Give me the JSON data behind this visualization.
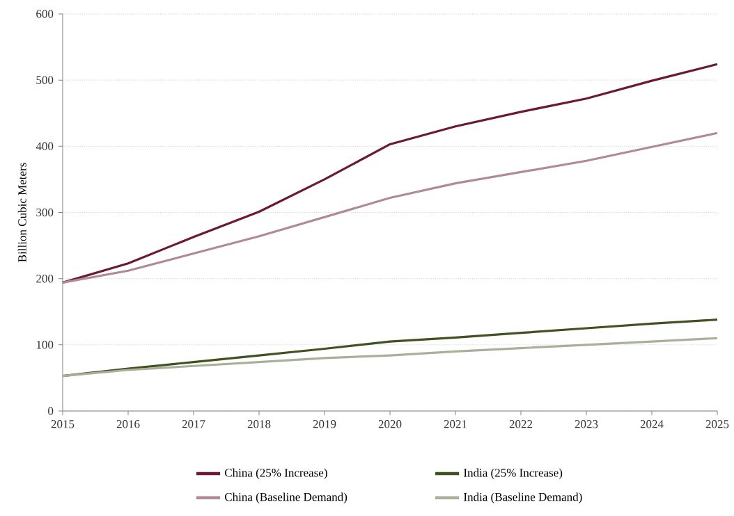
{
  "chart_data": {
    "type": "line",
    "ylabel": "Billion Cubic Meters",
    "x": [
      2015,
      2016,
      2017,
      2018,
      2019,
      2020,
      2021,
      2022,
      2023,
      2024,
      2025
    ],
    "series": [
      {
        "name": "China (25% Increase)",
        "color": "#6b1a33",
        "values": [
          194,
          223,
          263,
          301,
          350,
          403,
          430,
          452,
          472,
          499,
          524
        ]
      },
      {
        "name": "India (25% Increase)",
        "color": "#3f5220",
        "values": [
          53,
          64,
          74,
          84,
          94,
          105,
          111,
          118,
          125,
          132,
          138
        ]
      },
      {
        "name": "China (Baseline Demand)",
        "color": "#b08a96",
        "values": [
          194,
          212,
          238,
          264,
          293,
          322,
          344,
          361,
          378,
          399,
          420
        ]
      },
      {
        "name": "India (Baseline Demand)",
        "color": "#a9b09a",
        "values": [
          53,
          62,
          68,
          74,
          80,
          84,
          90,
          95,
          100,
          105,
          110
        ]
      }
    ],
    "xlim": [
      2015,
      2025
    ],
    "xticks": [
      2015,
      2016,
      2017,
      2018,
      2019,
      2020,
      2021,
      2022,
      2023,
      2024,
      2025
    ],
    "ylim": [
      0,
      600
    ],
    "yticks": [
      0,
      100,
      200,
      300,
      400,
      500,
      600
    ],
    "grid": "y",
    "legend": "bottom",
    "marker": "none",
    "line_style": "solid"
  }
}
